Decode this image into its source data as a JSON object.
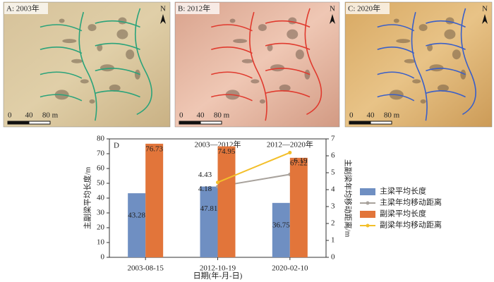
{
  "panels": [
    {
      "label": "A: 2003年",
      "north": "N",
      "scale": [
        "0",
        "40",
        "80 m"
      ]
    },
    {
      "label": "B: 2012年",
      "north": "N",
      "scale": [
        "0",
        "40",
        "80 m"
      ]
    },
    {
      "label": "C: 2020年",
      "north": "N",
      "scale": [
        "0",
        "40",
        "80 m"
      ]
    }
  ],
  "chart_data": {
    "type": "bar_line",
    "panel_label": "D",
    "x_label": "日期(年-月-日)",
    "y_label": "主副梁平均长度/m",
    "y2_label": "主副梁年均移动距离/m",
    "categories": [
      "2003-08-15",
      "2012-10-19",
      "2020-02-10"
    ],
    "annotations": [
      {
        "text": "2003—2012年",
        "category": 1
      },
      {
        "text": "2012—2020年",
        "category": 2
      }
    ],
    "ylim": [
      0,
      80
    ],
    "yticks": [
      0,
      10,
      20,
      30,
      40,
      50,
      60,
      70,
      80
    ],
    "y2lim": [
      0,
      7
    ],
    "y2ticks": [
      0,
      1,
      2,
      3,
      4,
      5,
      6,
      7
    ],
    "series": [
      {
        "name": "主梁平均长度",
        "kind": "bar",
        "color": "#6f8fc2",
        "values": [
          43.28,
          47.81,
          36.75
        ],
        "value_labels": [
          "43.28",
          "47.81",
          "36.75"
        ]
      },
      {
        "name": "主梁年均移动距离",
        "kind": "line",
        "axis": "y2",
        "color": "#a8a29c",
        "values": [
          null,
          4.18,
          4.9
        ],
        "value_labels": [
          null,
          "4.18",
          "4.90"
        ]
      },
      {
        "name": "副梁平均长度",
        "kind": "bar",
        "color": "#e2753a",
        "values": [
          76.73,
          74.95,
          67.22
        ],
        "value_labels": [
          "76.73",
          "74.95",
          "67.22"
        ]
      },
      {
        "name": "副梁年均移动距离",
        "kind": "line",
        "axis": "y2",
        "color": "#f3bf2a",
        "values": [
          null,
          4.43,
          6.19
        ],
        "value_labels": [
          null,
          "4.43",
          "6.19"
        ]
      }
    ]
  }
}
